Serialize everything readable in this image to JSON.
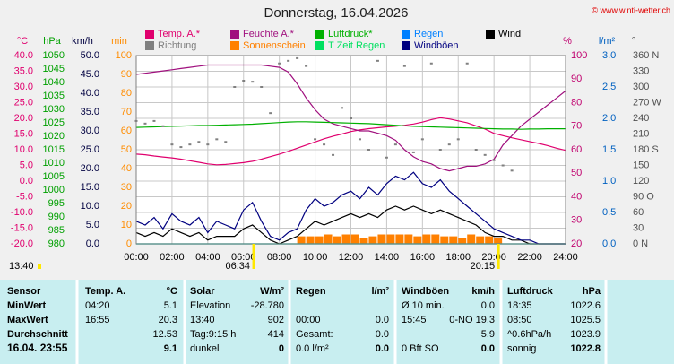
{
  "chart_data": {
    "type": "line",
    "title": "Donnerstag, 16.04.2026",
    "copyright": "© www.winti-wetter.ch",
    "xlim": [
      0,
      24
    ],
    "xticks": [
      {
        "value": 0,
        "label": "00:00"
      },
      {
        "value": 2,
        "label": "02:00"
      },
      {
        "value": 4,
        "label": "04:00"
      },
      {
        "value": 6,
        "label": "06:00"
      },
      {
        "value": 8,
        "label": "08:00"
      },
      {
        "value": 10,
        "label": "10:00"
      },
      {
        "value": 12,
        "label": "12:00"
      },
      {
        "value": 14,
        "label": "14:00"
      },
      {
        "value": 16,
        "label": "16:00"
      },
      {
        "value": 18,
        "label": "18:00"
      },
      {
        "value": 20,
        "label": "20:00"
      },
      {
        "value": 22,
        "label": "22:00"
      },
      {
        "value": 24,
        "label": "24:00"
      }
    ],
    "grid": true,
    "axes": [
      {
        "label": "°C",
        "color": "#e0006e",
        "ylim": [
          -20,
          40
        ],
        "yticks": [
          {
            "value": 40,
            "label": "40.0"
          },
          {
            "value": 35,
            "label": "35.0"
          },
          {
            "value": 30,
            "label": "30.0"
          },
          {
            "value": 25,
            "label": "25.0"
          },
          {
            "value": 20,
            "label": "20.0"
          },
          {
            "value": 15,
            "label": "15.0"
          },
          {
            "value": 10,
            "label": "10.0"
          },
          {
            "value": 5,
            "label": "5.0"
          },
          {
            "value": 0,
            "label": "0.0"
          },
          {
            "value": -5,
            "label": "-5.0"
          },
          {
            "value": -10,
            "label": "-10.0"
          },
          {
            "value": -15,
            "label": "-15.0"
          },
          {
            "value": -20,
            "label": "-20.0"
          }
        ]
      },
      {
        "label": "hPa",
        "color": "#00a000",
        "ylim": [
          980,
          1050
        ],
        "yticks": [
          1050,
          1045,
          1040,
          1035,
          1030,
          1025,
          1020,
          1015,
          1010,
          1005,
          1000,
          995,
          990,
          985,
          980
        ]
      },
      {
        "label": "km/h",
        "color": "#000040",
        "ylim": [
          0,
          50
        ],
        "yticks": [
          {
            "value": 50,
            "label": "50.0"
          },
          {
            "value": 45,
            "label": "45.0"
          },
          {
            "value": 40,
            "label": "40.0"
          },
          {
            "value": 35,
            "label": "35.0"
          },
          {
            "value": 30,
            "label": "30.0"
          },
          {
            "value": 25,
            "label": "25.0"
          },
          {
            "value": 20,
            "label": "20.0"
          },
          {
            "value": 15,
            "label": "15.0"
          },
          {
            "value": 10,
            "label": "10.0"
          },
          {
            "value": 5,
            "label": "5.0"
          },
          {
            "value": 0,
            "label": "0.0"
          }
        ]
      },
      {
        "label": "min",
        "color": "#ff8c00",
        "ylim": [
          0,
          100
        ],
        "yticks": [
          100,
          90,
          80,
          70,
          60,
          50,
          40,
          30,
          20,
          10,
          0
        ]
      },
      {
        "label": "%",
        "color": "#c0006e",
        "ylim": [
          20,
          100
        ],
        "yticks": [
          100,
          90,
          80,
          70,
          60,
          50,
          40,
          30,
          20
        ]
      },
      {
        "label": "l/m²",
        "color": "#0060c0",
        "ylim": [
          0,
          3
        ],
        "yticks": [
          {
            "value": 3,
            "label": "3.0"
          },
          {
            "value": 2.5,
            "label": "2.5"
          },
          {
            "value": 2,
            "label": "2.0"
          },
          {
            "value": 1.5,
            "label": "1.5"
          },
          {
            "value": 1,
            "label": "1.0"
          },
          {
            "value": 0.5,
            "label": "0.5"
          },
          {
            "value": 0,
            "label": "0.0"
          }
        ]
      },
      {
        "label": "°",
        "color": "#505050",
        "ylim": [
          0,
          360
        ],
        "yticks": [
          {
            "value": 360,
            "label": "360 N"
          },
          {
            "value": 330,
            "label": "330"
          },
          {
            "value": 300,
            "label": "300"
          },
          {
            "value": 270,
            "label": "270 W"
          },
          {
            "value": 240,
            "label": "240"
          },
          {
            "value": 210,
            "label": "210"
          },
          {
            "value": 180,
            "label": "180 S"
          },
          {
            "value": 150,
            "label": "150"
          },
          {
            "value": 120,
            "label": "120"
          },
          {
            "value": 90,
            "label": "90 O"
          },
          {
            "value": 60,
            "label": "60"
          },
          {
            "value": 30,
            "label": "30"
          },
          {
            "value": 0,
            "label": "0 N"
          }
        ]
      }
    ],
    "x": [
      0,
      0.5,
      1,
      1.5,
      2,
      2.5,
      3,
      3.5,
      4,
      4.5,
      5,
      5.5,
      6,
      6.5,
      7,
      7.5,
      8,
      8.5,
      9,
      9.5,
      10,
      10.5,
      11,
      11.5,
      12,
      12.5,
      13,
      13.5,
      14,
      14.5,
      15,
      15.5,
      16,
      16.5,
      17,
      17.5,
      18,
      18.5,
      19,
      19.5,
      20,
      20.5,
      21,
      21.5,
      22,
      22.5,
      23,
      23.5,
      24
    ],
    "series": [
      {
        "name": "Temp. A.*",
        "color": "#e0006e",
        "axis": 0,
        "style": "line",
        "values": [
          8.6,
          8.4,
          8.0,
          7.7,
          7.4,
          7.0,
          6.5,
          6.0,
          5.5,
          5.2,
          5.3,
          5.6,
          5.9,
          6.3,
          7.0,
          7.8,
          8.6,
          9.5,
          10.5,
          11.5,
          12.5,
          13.5,
          14.3,
          15.0,
          15.8,
          16.3,
          16.7,
          17.0,
          17.3,
          17.5,
          17.8,
          18.2,
          18.8,
          19.6,
          20.2,
          19.8,
          19.2,
          18.6,
          17.6,
          16.6,
          15.2,
          14.5,
          13.8,
          13.2,
          12.6,
          12.0,
          11.3,
          10.5,
          9.8
        ]
      },
      {
        "name": "Feuchte A.*",
        "color": "#a0107e",
        "axis": 4,
        "style": "line",
        "values": [
          92,
          92.5,
          93,
          93.5,
          94,
          94.5,
          95,
          95.5,
          96,
          96,
          96,
          96,
          96,
          96,
          96,
          95.5,
          95,
          93,
          88,
          82,
          77,
          73,
          71,
          70,
          69,
          68,
          68,
          67,
          66,
          64,
          60,
          57,
          55,
          54,
          52,
          51,
          52,
          53,
          53,
          54,
          56,
          62,
          66,
          70,
          73,
          76,
          79,
          82,
          85
        ]
      },
      {
        "name": "Luftdruck*",
        "color": "#00b000",
        "axis": 1,
        "style": "line",
        "values": [
          1023.3,
          1023.4,
          1023.5,
          1023.6,
          1023.7,
          1023.8,
          1023.9,
          1024.0,
          1024.0,
          1024.1,
          1024.2,
          1024.3,
          1024.4,
          1024.5,
          1024.7,
          1024.9,
          1025.1,
          1025.3,
          1025.4,
          1025.4,
          1025.3,
          1025.2,
          1025.1,
          1025.0,
          1024.9,
          1024.8,
          1024.7,
          1024.5,
          1024.3,
          1024.1,
          1023.9,
          1023.7,
          1023.6,
          1023.5,
          1023.4,
          1023.3,
          1023.2,
          1023.1,
          1023.0,
          1022.9,
          1022.8,
          1022.7,
          1022.7,
          1022.6,
          1022.7,
          1022.7,
          1022.8,
          1022.8,
          1022.8
        ]
      },
      {
        "name": "Regen",
        "color": "#0080ff",
        "axis": 5,
        "style": "line",
        "values": [
          0,
          0,
          0,
          0,
          0,
          0,
          0,
          0,
          0,
          0,
          0,
          0,
          0,
          0,
          0,
          0,
          0,
          0,
          0,
          0,
          0,
          0,
          0,
          0,
          0,
          0,
          0,
          0,
          0,
          0,
          0,
          0,
          0,
          0,
          0,
          0,
          0,
          0,
          0,
          0,
          0,
          0,
          0,
          0,
          0,
          0,
          0,
          0,
          0
        ]
      },
      {
        "name": "Wind",
        "color": "#000000",
        "axis": 2,
        "style": "line",
        "values": [
          3,
          2,
          3,
          2,
          4,
          3,
          2,
          3,
          1,
          2,
          2,
          2,
          4,
          5,
          3,
          1,
          0,
          1,
          2,
          4,
          6,
          5,
          6,
          7,
          8,
          7,
          8,
          7,
          9,
          10,
          9,
          10,
          9,
          8,
          9,
          8,
          7,
          6,
          5,
          3,
          2,
          2,
          1,
          1,
          0,
          0,
          0,
          0,
          0
        ]
      },
      {
        "name": "Richtung",
        "color": "#808080",
        "axis": 6,
        "style": "dots",
        "values": [
          235,
          230,
          235,
          225,
          190,
          185,
          190,
          195,
          190,
          200,
          195,
          300,
          312,
          310,
          300,
          250,
          345,
          350,
          355,
          340,
          200,
          190,
          170,
          260,
          240,
          200,
          180,
          350,
          165,
          190,
          340,
          175,
          200,
          345,
          180,
          190,
          200,
          345,
          180,
          170,
          160,
          150,
          140,
          null,
          null,
          null,
          null,
          null,
          null
        ]
      },
      {
        "name": "Sonnenschein",
        "color": "#ff8000",
        "axis": 3,
        "style": "bar",
        "values": [
          0,
          0,
          0,
          0,
          0,
          0,
          0,
          0,
          0,
          0,
          0,
          0,
          0,
          0,
          0,
          0,
          0,
          0,
          4,
          4,
          4,
          5,
          4,
          5,
          5,
          3,
          4,
          5,
          5,
          5,
          5,
          4,
          5,
          5,
          4,
          4,
          3,
          5,
          4,
          4,
          3,
          0,
          0,
          0,
          0,
          0,
          0,
          0,
          0
        ]
      },
      {
        "name": "T Zeit Regen",
        "color": "#00e060",
        "axis": 3,
        "style": "line",
        "values": [
          0,
          0,
          0,
          0,
          0,
          0,
          0,
          0,
          0,
          0,
          0,
          0,
          0,
          0,
          0,
          0,
          0,
          0,
          0,
          0,
          0,
          0,
          0,
          0,
          0,
          0,
          0,
          0,
          0,
          0,
          0,
          0,
          0,
          0,
          0,
          0,
          0,
          0,
          0,
          0,
          0,
          0,
          0,
          0,
          0,
          0,
          0,
          0,
          0
        ]
      },
      {
        "name": "Windböen",
        "color": "#000080",
        "axis": 2,
        "style": "line",
        "values": [
          6,
          5,
          7,
          4,
          8,
          6,
          5,
          7,
          3,
          6,
          5,
          4,
          9,
          11,
          6,
          2,
          1,
          3,
          4,
          9,
          12,
          10,
          11,
          13,
          14,
          12,
          15,
          13,
          16,
          18,
          17,
          19,
          16,
          15,
          17,
          14,
          12,
          10,
          8,
          6,
          4,
          3,
          2,
          1,
          1,
          0,
          0,
          0,
          0
        ]
      }
    ],
    "annotations": [
      {
        "text": "13:40"
      },
      {
        "text": "06:34",
        "x": 6.5667
      },
      {
        "text": "20:15",
        "x": 20.25
      }
    ]
  },
  "table": {
    "header": [
      "Sensor",
      "Temp. A.",
      "°C",
      "Solar",
      "W/m²",
      "Regen",
      "l/m²",
      "Windböen",
      "km/h",
      "Luftdruck",
      "hPa"
    ],
    "rows": [
      [
        "MinWert",
        "04:20",
        "5.1",
        "Elevation",
        "-28.780",
        null,
        null,
        "Ø 10 min.",
        "0.0",
        "18:35",
        "1022.6"
      ],
      [
        "MaxWert",
        "16:55",
        "20.3",
        "13:40",
        "902",
        "00:00",
        "0.0",
        "15:45",
        "0-NO 19.3",
        "08:50",
        "1025.5"
      ],
      [
        "Durchschnitt",
        null,
        "12.53",
        "Tag:9:15 h",
        "414",
        "Gesamt:",
        "0.0",
        null,
        "5.9",
        "^0.6hPa/h",
        "1023.9"
      ],
      [
        "16.04. 23:55",
        null,
        "9.1",
        "dunkel",
        "0",
        "0.0 l/m²",
        "0.0",
        "0 Bft SO",
        "0.0",
        "sonnig",
        "1022.8"
      ]
    ]
  }
}
